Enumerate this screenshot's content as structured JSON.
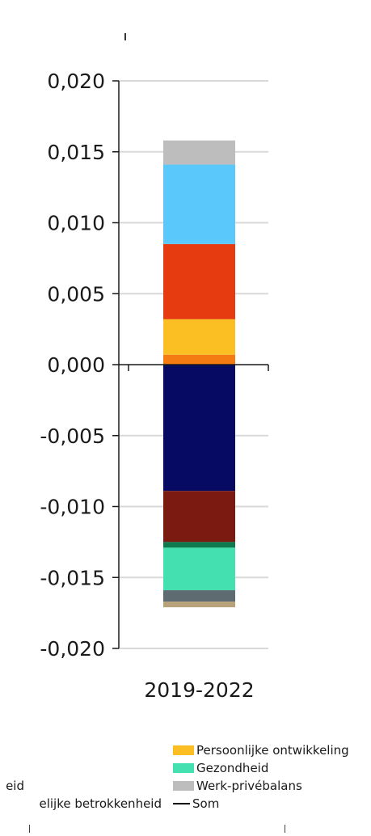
{
  "chart_data": {
    "type": "stacked-bar",
    "categories": [
      "2019-2022"
    ],
    "ylim": [
      -0.02,
      0.02
    ],
    "yticks": [
      "0,020",
      "0,015",
      "0,010",
      "0,005",
      "0,000",
      "-0,005",
      "-0,010",
      "-0,015",
      "-0,020"
    ],
    "ytick_values": [
      0.02,
      0.015,
      0.01,
      0.005,
      0.0,
      -0.005,
      -0.01,
      -0.015,
      -0.02
    ],
    "grid": true,
    "positive_segments": [
      {
        "value": 0.0007,
        "color": "#f47a12"
      },
      {
        "value": 0.0025,
        "color": "#fbbf24",
        "name": "Persoonlijke ontwikkeling"
      },
      {
        "value": 0.0053,
        "color": "#e63a10"
      },
      {
        "value": 0.0056,
        "color": "#5ac8fa"
      },
      {
        "value": 0.0017,
        "color": "#bdbdbd",
        "name": "Werk-privébalans"
      }
    ],
    "negative_segments": [
      {
        "value": -0.0089,
        "color": "#060a63"
      },
      {
        "value": -0.0036,
        "color": "#7a1a10"
      },
      {
        "value": -0.0004,
        "color": "#0f7a4e"
      },
      {
        "value": -0.003,
        "color": "#45e0b0",
        "name": "Gezondheid"
      },
      {
        "value": -0.0008,
        "color": "#5e6b70"
      },
      {
        "value": -0.0004,
        "color": "#b8a27a"
      }
    ]
  },
  "legend": {
    "items": [
      {
        "label": "Persoonlijke ontwikkeling",
        "color": "#fbbf24",
        "kind": "swatch"
      },
      {
        "label": "Gezondheid",
        "color": "#45e0b0",
        "kind": "swatch"
      },
      {
        "label": "Werk-privébalans",
        "color": "#bdbdbd",
        "kind": "swatch"
      },
      {
        "label": "Som",
        "color": "#000000",
        "kind": "line"
      }
    ],
    "cut_left": [
      {
        "label": "eid"
      },
      {
        "label": "elijke betrokkenheid"
      }
    ]
  }
}
